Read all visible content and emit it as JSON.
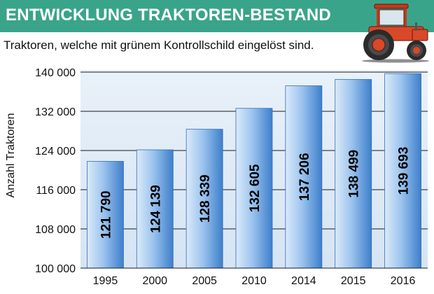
{
  "header": {
    "title": "ENTWICKLUNG TRAKTOREN-BESTAND",
    "subtitle": "Traktoren, welche mit grünem Kontrollschild eingelöst sind."
  },
  "colors": {
    "title_bar": "#3aa48b",
    "plot_background": "#e0ecf7",
    "bar_light": "#dbeaf9",
    "bar_dark": "#3d7fcb",
    "gridline": "#1a1a1a",
    "tractor_body": "#d94828"
  },
  "illustration": "tractor-icon",
  "chart_data": {
    "type": "bar",
    "categories": [
      "1995",
      "2000",
      "2005",
      "2010",
      "2014",
      "2015",
      "2016"
    ],
    "values": [
      121790,
      124139,
      128339,
      132605,
      137206,
      138499,
      139693
    ],
    "value_labels": [
      "121 790",
      "124 139",
      "128 339",
      "132 605",
      "137 206",
      "138 499",
      "139 693"
    ],
    "ylabel": "Anzahl Traktoren",
    "xlabel": "",
    "ylim": [
      100000,
      140000
    ],
    "yticks": [
      100000,
      108000,
      116000,
      124000,
      132000,
      140000
    ],
    "ytick_labels": [
      "100 000",
      "108 000",
      "116 000",
      "124 000",
      "132 000",
      "140 000"
    ],
    "grid": true,
    "legend": "none"
  }
}
